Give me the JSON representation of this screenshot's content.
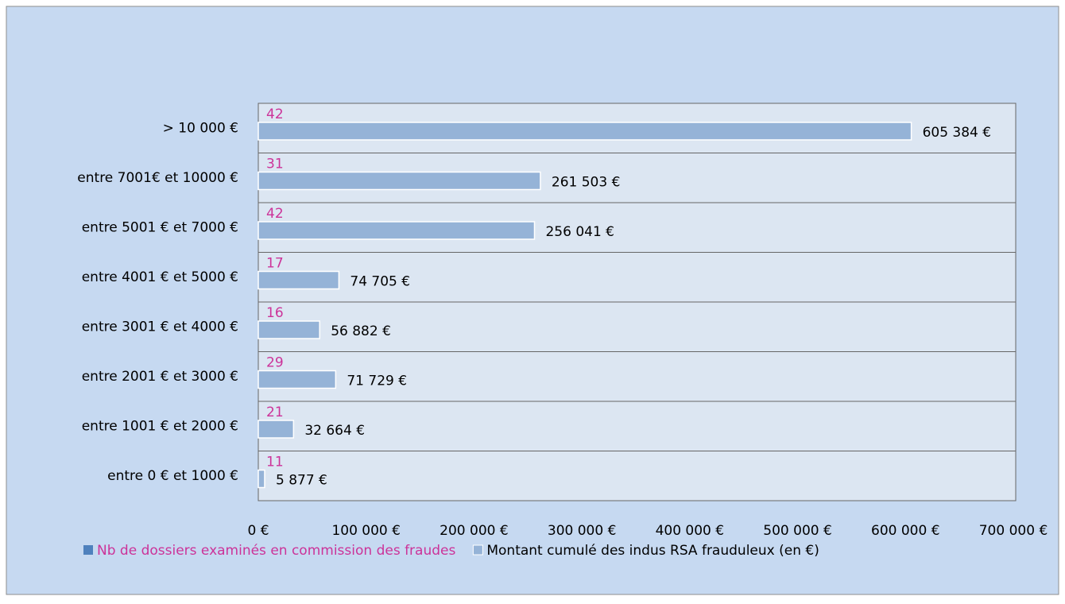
{
  "chart_data": {
    "type": "bar",
    "orientation": "horizontal",
    "categories": [
      "> 10 000 €",
      "entre 7001€ et 10000 €",
      "entre 5001 € et 7000 €",
      "entre 4001 € et 5000 €",
      "entre 3001 € et 4000 €",
      "entre 2001 € et 3000 €",
      "entre 1001 € et 2000 €",
      "entre 0 € et 1000 €"
    ],
    "series": [
      {
        "name": "Nb de dossiers examinés en commission des fraudes",
        "color": "#4f81bd",
        "values": [
          42,
          31,
          42,
          17,
          16,
          29,
          21,
          11
        ]
      },
      {
        "name": "Montant cumulé des indus RSA frauduleux (en €)",
        "color": "#95b3d7",
        "values": [
          605384,
          261503,
          256041,
          74705,
          56882,
          71729,
          32664,
          5877
        ],
        "value_labels": [
          "605 384 €",
          "261 503 €",
          "256 041 €",
          "74 705 €",
          "56 882 €",
          "71 729 €",
          "32 664 €",
          "5 877 €"
        ]
      }
    ],
    "xlim": [
      0,
      700000
    ],
    "xticks": [
      {
        "value": 0,
        "label": "0 €"
      },
      {
        "value": 100000,
        "label": "100 000 €"
      },
      {
        "value": 200000,
        "label": "200 000 €"
      },
      {
        "value": 300000,
        "label": "300 000 €"
      },
      {
        "value": 400000,
        "label": "400 000 €"
      },
      {
        "value": 500000,
        "label": "500 000 €"
      },
      {
        "value": 600000,
        "label": "600 000 €"
      },
      {
        "value": 700000,
        "label": "700 000 €"
      }
    ],
    "legend": "bottom",
    "grid": true
  }
}
